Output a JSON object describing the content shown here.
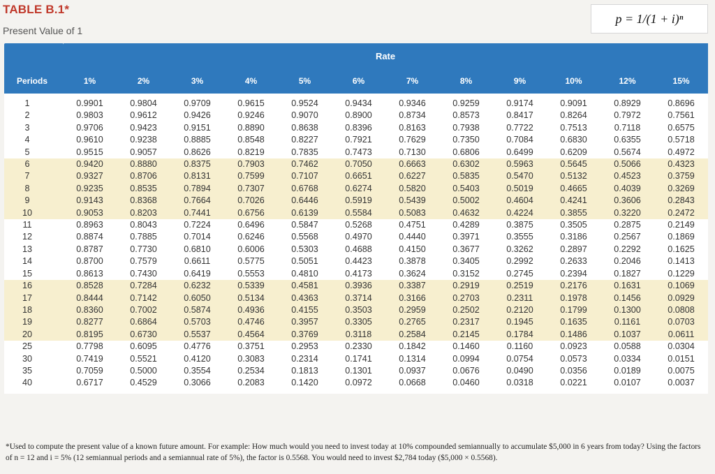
{
  "header": {
    "title": "TABLE B.1*",
    "subtitle": "Present Value of 1",
    "formula": "p = 1/(1 + i)ⁿ"
  },
  "table": {
    "group_header": "Rate",
    "periods_header": "Periods",
    "rates": [
      "1%",
      "2%",
      "3%",
      "4%",
      "5%",
      "6%",
      "7%",
      "8%",
      "9%",
      "10%",
      "12%",
      "15%"
    ],
    "rows": [
      {
        "period": "1",
        "values": [
          "0.9901",
          "0.9804",
          "0.9709",
          "0.9615",
          "0.9524",
          "0.9434",
          "0.9346",
          "0.9259",
          "0.9174",
          "0.9091",
          "0.8929",
          "0.8696"
        ]
      },
      {
        "period": "2",
        "values": [
          "0.9803",
          "0.9612",
          "0.9426",
          "0.9246",
          "0.9070",
          "0.8900",
          "0.8734",
          "0.8573",
          "0.8417",
          "0.8264",
          "0.7972",
          "0.7561"
        ]
      },
      {
        "period": "3",
        "values": [
          "0.9706",
          "0.9423",
          "0.9151",
          "0.8890",
          "0.8638",
          "0.8396",
          "0.8163",
          "0.7938",
          "0.7722",
          "0.7513",
          "0.7118",
          "0.6575"
        ]
      },
      {
        "period": "4",
        "values": [
          "0.9610",
          "0.9238",
          "0.8885",
          "0.8548",
          "0.8227",
          "0.7921",
          "0.7629",
          "0.7350",
          "0.7084",
          "0.6830",
          "0.6355",
          "0.5718"
        ]
      },
      {
        "period": "5",
        "values": [
          "0.9515",
          "0.9057",
          "0.8626",
          "0.8219",
          "0.7835",
          "0.7473",
          "0.7130",
          "0.6806",
          "0.6499",
          "0.6209",
          "0.5674",
          "0.4972"
        ]
      },
      {
        "period": "6",
        "values": [
          "0.9420",
          "0.8880",
          "0.8375",
          "0.7903",
          "0.7462",
          "0.7050",
          "0.6663",
          "0.6302",
          "0.5963",
          "0.5645",
          "0.5066",
          "0.4323"
        ]
      },
      {
        "period": "7",
        "values": [
          "0.9327",
          "0.8706",
          "0.8131",
          "0.7599",
          "0.7107",
          "0.6651",
          "0.6227",
          "0.5835",
          "0.5470",
          "0.5132",
          "0.4523",
          "0.3759"
        ]
      },
      {
        "period": "8",
        "values": [
          "0.9235",
          "0.8535",
          "0.7894",
          "0.7307",
          "0.6768",
          "0.6274",
          "0.5820",
          "0.5403",
          "0.5019",
          "0.4665",
          "0.4039",
          "0.3269"
        ]
      },
      {
        "period": "9",
        "values": [
          "0.9143",
          "0.8368",
          "0.7664",
          "0.7026",
          "0.6446",
          "0.5919",
          "0.5439",
          "0.5002",
          "0.4604",
          "0.4241",
          "0.3606",
          "0.2843"
        ]
      },
      {
        "period": "10",
        "values": [
          "0.9053",
          "0.8203",
          "0.7441",
          "0.6756",
          "0.6139",
          "0.5584",
          "0.5083",
          "0.4632",
          "0.4224",
          "0.3855",
          "0.3220",
          "0.2472"
        ]
      },
      {
        "period": "11",
        "values": [
          "0.8963",
          "0.8043",
          "0.7224",
          "0.6496",
          "0.5847",
          "0.5268",
          "0.4751",
          "0.4289",
          "0.3875",
          "0.3505",
          "0.2875",
          "0.2149"
        ]
      },
      {
        "period": "12",
        "values": [
          "0.8874",
          "0.7885",
          "0.7014",
          "0.6246",
          "0.5568",
          "0.4970",
          "0.4440",
          "0.3971",
          "0.3555",
          "0.3186",
          "0.2567",
          "0.1869"
        ]
      },
      {
        "period": "13",
        "values": [
          "0.8787",
          "0.7730",
          "0.6810",
          "0.6006",
          "0.5303",
          "0.4688",
          "0.4150",
          "0.3677",
          "0.3262",
          "0.2897",
          "0.2292",
          "0.1625"
        ]
      },
      {
        "period": "14",
        "values": [
          "0.8700",
          "0.7579",
          "0.6611",
          "0.5775",
          "0.5051",
          "0.4423",
          "0.3878",
          "0.3405",
          "0.2992",
          "0.2633",
          "0.2046",
          "0.1413"
        ]
      },
      {
        "period": "15",
        "values": [
          "0.8613",
          "0.7430",
          "0.6419",
          "0.5553",
          "0.4810",
          "0.4173",
          "0.3624",
          "0.3152",
          "0.2745",
          "0.2394",
          "0.1827",
          "0.1229"
        ]
      },
      {
        "period": "16",
        "values": [
          "0.8528",
          "0.7284",
          "0.6232",
          "0.5339",
          "0.4581",
          "0.3936",
          "0.3387",
          "0.2919",
          "0.2519",
          "0.2176",
          "0.1631",
          "0.1069"
        ]
      },
      {
        "period": "17",
        "values": [
          "0.8444",
          "0.7142",
          "0.6050",
          "0.5134",
          "0.4363",
          "0.3714",
          "0.3166",
          "0.2703",
          "0.2311",
          "0.1978",
          "0.1456",
          "0.0929"
        ]
      },
      {
        "period": "18",
        "values": [
          "0.8360",
          "0.7002",
          "0.5874",
          "0.4936",
          "0.4155",
          "0.3503",
          "0.2959",
          "0.2502",
          "0.2120",
          "0.1799",
          "0.1300",
          "0.0808"
        ]
      },
      {
        "period": "19",
        "values": [
          "0.8277",
          "0.6864",
          "0.5703",
          "0.4746",
          "0.3957",
          "0.3305",
          "0.2765",
          "0.2317",
          "0.1945",
          "0.1635",
          "0.1161",
          "0.0703"
        ]
      },
      {
        "period": "20",
        "values": [
          "0.8195",
          "0.6730",
          "0.5537",
          "0.4564",
          "0.3769",
          "0.3118",
          "0.2584",
          "0.2145",
          "0.1784",
          "0.1486",
          "0.1037",
          "0.0611"
        ]
      },
      {
        "period": "25",
        "values": [
          "0.7798",
          "0.6095",
          "0.4776",
          "0.3751",
          "0.2953",
          "0.2330",
          "0.1842",
          "0.1460",
          "0.1160",
          "0.0923",
          "0.0588",
          "0.0304"
        ]
      },
      {
        "period": "30",
        "values": [
          "0.7419",
          "0.5521",
          "0.4120",
          "0.3083",
          "0.2314",
          "0.1741",
          "0.1314",
          "0.0994",
          "0.0754",
          "0.0573",
          "0.0334",
          "0.0151"
        ]
      },
      {
        "period": "35",
        "values": [
          "0.7059",
          "0.5000",
          "0.3554",
          "0.2534",
          "0.1813",
          "0.1301",
          "0.0937",
          "0.0676",
          "0.0490",
          "0.0356",
          "0.0189",
          "0.0075"
        ]
      },
      {
        "period": "40",
        "values": [
          "0.6717",
          "0.4529",
          "0.3066",
          "0.2083",
          "0.1420",
          "0.0972",
          "0.0668",
          "0.0460",
          "0.0318",
          "0.0221",
          "0.0107",
          "0.0037"
        ]
      }
    ]
  },
  "footnote": "*Used to compute the present value of a known future amount. For example: How much would you need to invest today at 10% compounded semiannually to accumulate $5,000 in 6 years from today? Using the factors of n = 12 and i = 5% (12 semiannual periods and a semiannual rate of 5%), the factor is 0.5568. You would need to invest $2,784 today ($5,000 × 0.5568).",
  "colors": {
    "header_blue": "#2f79bd",
    "band_yellow": "#f7efcf",
    "title_red": "#c0392b"
  }
}
